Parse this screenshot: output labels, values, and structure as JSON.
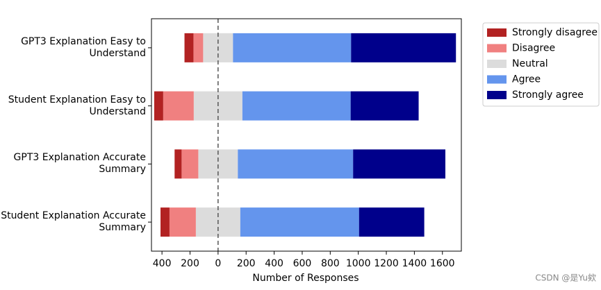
{
  "chart_data": {
    "type": "diverging_bar",
    "xlabel": "Number of Responses",
    "categories": [
      "GPT3 Explanation Easy to\nUnderstand",
      "Student Explanation Easy to\nUnderstand",
      "GPT3 Explanation Accurate\nSummary",
      "Student Explanation Accurate\nSummary"
    ],
    "series": [
      {
        "name": "Strongly disagree",
        "color": "#b22222",
        "side": "negative",
        "values": [
          64,
          64,
          50,
          64
        ]
      },
      {
        "name": "Disagree",
        "color": "#f08080",
        "side": "negative",
        "values": [
          69,
          218,
          119,
          188
        ]
      },
      {
        "name": "Neutral",
        "color": "#dcdcdc",
        "side": "center",
        "values": [
          213,
          347,
          282,
          317
        ]
      },
      {
        "name": "Agree",
        "color": "#6495ed",
        "side": "positive",
        "values": [
          842,
          772,
          822,
          847
        ]
      },
      {
        "name": "Strongly agree",
        "color": "#00008b",
        "side": "positive",
        "values": [
          748,
          485,
          658,
          465
        ]
      }
    ],
    "xlim": [
      -475,
      1735
    ],
    "xticks": [
      {
        "value": -400,
        "label": "400"
      },
      {
        "value": -200,
        "label": "200"
      },
      0,
      200,
      400,
      600,
      800,
      1000,
      1200,
      1400,
      1600
    ],
    "legend": "outside-upper-right",
    "watermark": "CSDN @是Yu欸"
  }
}
